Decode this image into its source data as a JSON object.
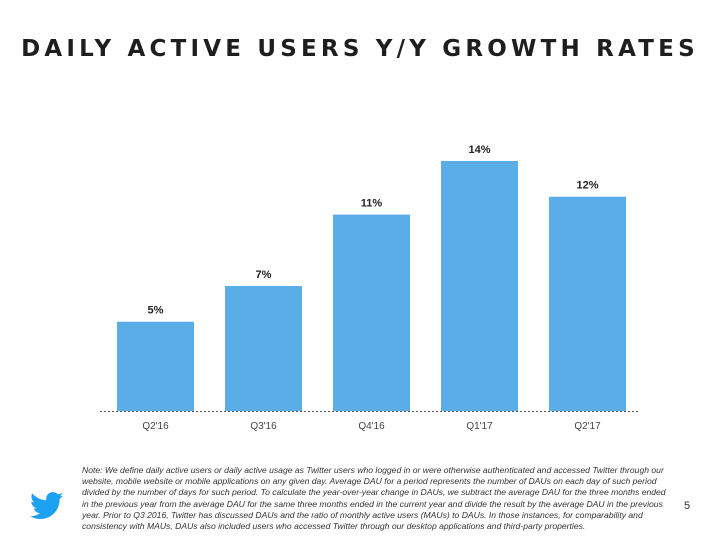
{
  "title": "DAILY ACTIVE USERS Y/Y GROWTH RATES",
  "chart_data": {
    "type": "bar",
    "categories": [
      "Q2'16",
      "Q3'16",
      "Q4'16",
      "Q1'17",
      "Q2'17"
    ],
    "values": [
      5,
      7,
      11,
      14,
      12
    ],
    "value_labels": [
      "5%",
      "7%",
      "11%",
      "14%",
      "12%"
    ],
    "title": "",
    "xlabel": "",
    "ylabel": "",
    "ylim": [
      0,
      14
    ],
    "grid": false,
    "legend": "none",
    "bar_color": "#5aade6"
  },
  "note": "Note: We define daily active users or daily active usage as Twitter users who logged in or were otherwise authenticated and accessed Twitter through our website, mobile website or mobile applications on any given day. Average DAU for a period represents the number of DAUs on each day of such period divided by the number of days for such period. To calculate the year-over-year change in DAUs, we subtract the average DAU for the three months ended in the previous year from the average DAU for the same three months ended in the current year and divide the result by the average DAU in the previous year. Prior to Q3 2016, Twitter has discussed DAUs and the ratio of monthly active users (MAUs) to DAUs. In those instances, for comparability and consistency with MAUs, DAUs also included users who accessed Twitter through our desktop applications and third-party properties.",
  "page_number": "5",
  "logo_icon": "twitter-bird-icon",
  "brand_color": "#1da1f2"
}
